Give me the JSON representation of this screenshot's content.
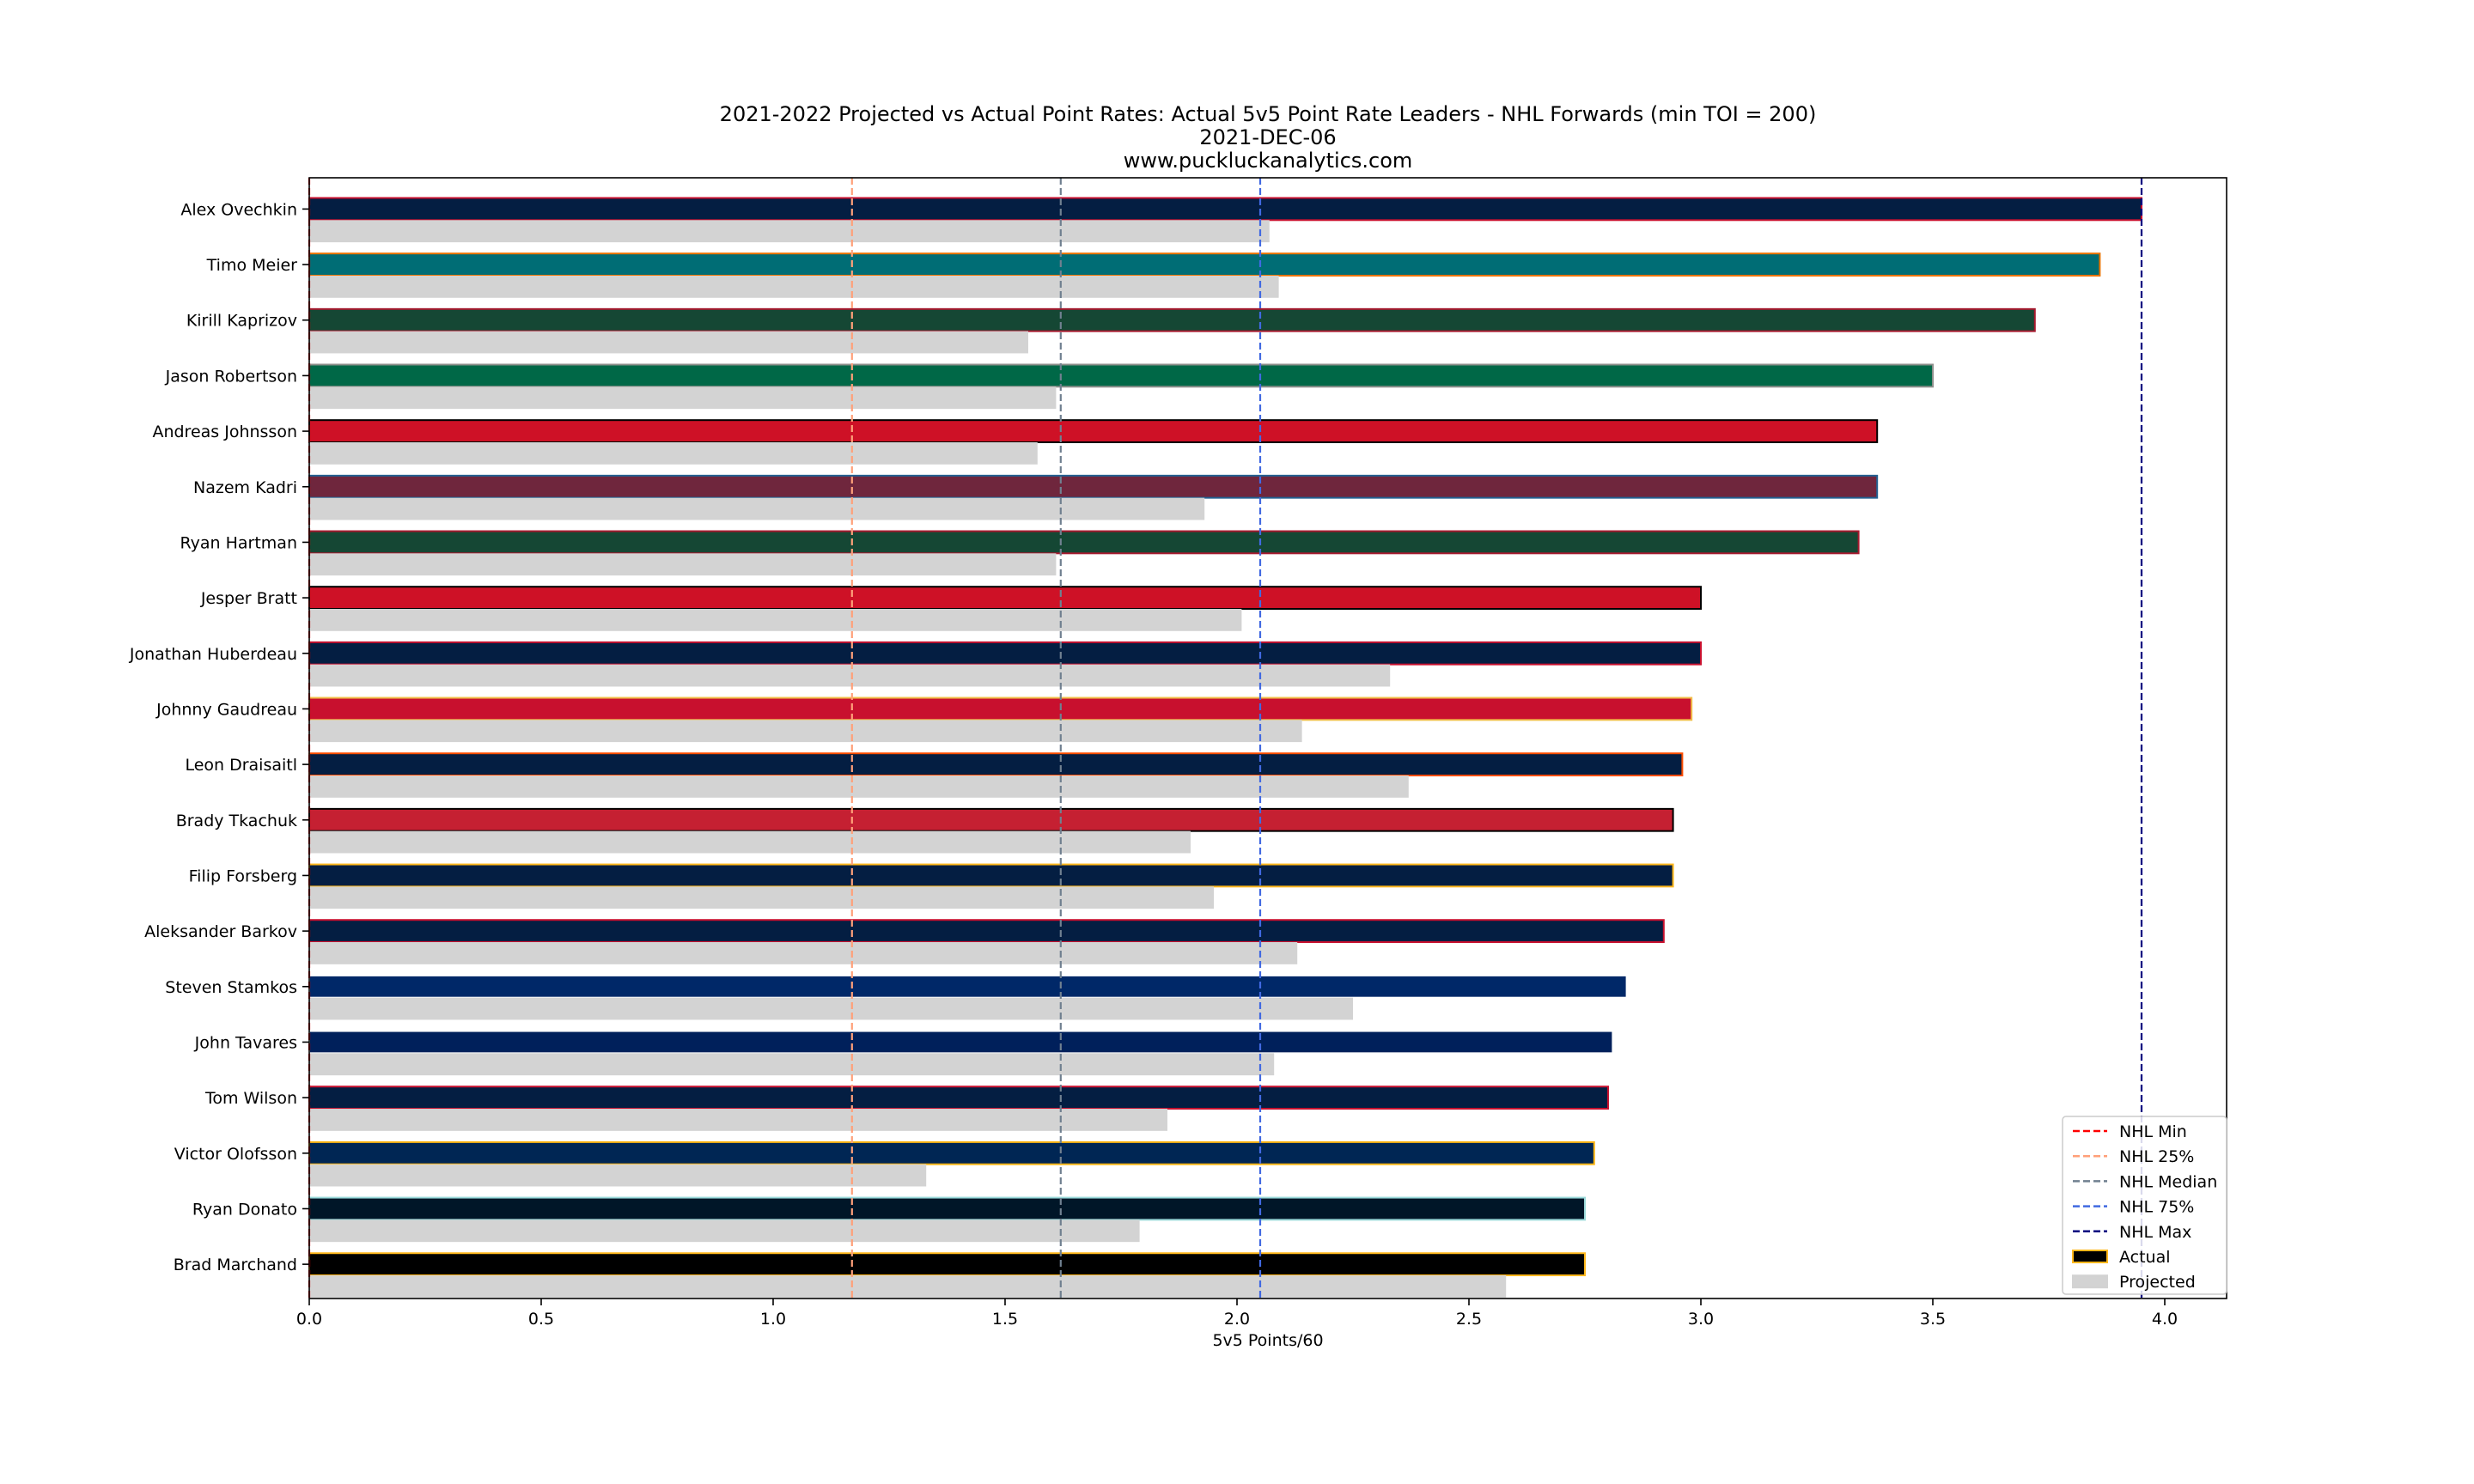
{
  "chart_data": {
    "type": "bar",
    "orientation": "horizontal",
    "title_lines": [
      "2021-2022 Projected vs Actual Point Rates: Actual 5v5 Point Rate Leaders - NHL Forwards (min TOI = 200)",
      "2021-DEC-06",
      "www.puckluckanalytics.com"
    ],
    "xlabel": "5v5 Points/60",
    "ylabel": "",
    "xlim": [
      0.0,
      4.15
    ],
    "xticks": [
      {
        "value": 0.0,
        "label": "0.0"
      },
      {
        "value": 0.5,
        "label": "0.5"
      },
      {
        "value": 1.0,
        "label": "1.0"
      },
      {
        "value": 1.5,
        "label": "1.5"
      },
      {
        "value": 2.0,
        "label": "2.0"
      },
      {
        "value": 2.5,
        "label": "2.5"
      },
      {
        "value": 3.0,
        "label": "3.0"
      },
      {
        "value": 3.5,
        "label": "3.5"
      },
      {
        "value": 4.0,
        "label": "4.0"
      }
    ],
    "grid": false,
    "legend_position": "lower-right",
    "players": [
      {
        "name": "Alex Ovechkin",
        "actual": 3.95,
        "projected": 2.07,
        "fill": "#041E42",
        "edge": "#C8102E"
      },
      {
        "name": "Timo Meier",
        "actual": 3.86,
        "projected": 2.09,
        "fill": "#006D75",
        "edge": "#EA7200"
      },
      {
        "name": "Kirill Kaprizov",
        "actual": 3.72,
        "projected": 1.55,
        "fill": "#154734",
        "edge": "#A6192E"
      },
      {
        "name": "Jason Robertson",
        "actual": 3.5,
        "projected": 1.61,
        "fill": "#006847",
        "edge": "#8F8F8C"
      },
      {
        "name": "Andreas Johnsson",
        "actual": 3.38,
        "projected": 1.57,
        "fill": "#CE1126",
        "edge": "#000000"
      },
      {
        "name": "Nazem Kadri",
        "actual": 3.38,
        "projected": 1.93,
        "fill": "#6F263D",
        "edge": "#236192"
      },
      {
        "name": "Ryan Hartman",
        "actual": 3.34,
        "projected": 1.61,
        "fill": "#154734",
        "edge": "#A6192E"
      },
      {
        "name": "Jesper Bratt",
        "actual": 3.0,
        "projected": 2.01,
        "fill": "#CE1126",
        "edge": "#000000"
      },
      {
        "name": "Jonathan Huberdeau",
        "actual": 3.0,
        "projected": 2.33,
        "fill": "#041E42",
        "edge": "#C8102E"
      },
      {
        "name": "Johnny Gaudreau",
        "actual": 2.98,
        "projected": 2.14,
        "fill": "#C8102E",
        "edge": "#F1BE48"
      },
      {
        "name": "Leon Draisaitl",
        "actual": 2.96,
        "projected": 2.37,
        "fill": "#041E42",
        "edge": "#FF4C00"
      },
      {
        "name": "Brady Tkachuk",
        "actual": 2.94,
        "projected": 1.9,
        "fill": "#C52032",
        "edge": "#000000"
      },
      {
        "name": "Filip Forsberg",
        "actual": 2.94,
        "projected": 1.95,
        "fill": "#041E42",
        "edge": "#FFB81C"
      },
      {
        "name": "Aleksander Barkov",
        "actual": 2.92,
        "projected": 2.13,
        "fill": "#041E42",
        "edge": "#C8102E"
      },
      {
        "name": "Steven Stamkos",
        "actual": 2.84,
        "projected": 2.25,
        "fill": "#002868",
        "edge": "#FFFFFF"
      },
      {
        "name": "John Tavares",
        "actual": 2.81,
        "projected": 2.08,
        "fill": "#00205B",
        "edge": "#FFFFFF"
      },
      {
        "name": "Tom Wilson",
        "actual": 2.8,
        "projected": 1.85,
        "fill": "#041E42",
        "edge": "#C8102E"
      },
      {
        "name": "Victor Olofsson",
        "actual": 2.77,
        "projected": 1.33,
        "fill": "#002654",
        "edge": "#FCB514"
      },
      {
        "name": "Ryan Donato",
        "actual": 2.75,
        "projected": 1.79,
        "fill": "#001628",
        "edge": "#99D9D9"
      },
      {
        "name": "Brad Marchand",
        "actual": 2.75,
        "projected": 2.58,
        "fill": "#000000",
        "edge": "#FFB81C"
      }
    ],
    "projected_color": "#D3D3D3",
    "reference_lines": [
      {
        "name": "NHL Min",
        "value": 0.0,
        "color": "#FF0000"
      },
      {
        "name": "NHL 25%",
        "value": 1.17,
        "color": "#FFA07A"
      },
      {
        "name": "NHL Median",
        "value": 1.62,
        "color": "#708090"
      },
      {
        "name": "NHL 75%",
        "value": 2.05,
        "color": "#4169E1"
      },
      {
        "name": "NHL Max",
        "value": 3.95,
        "color": "#000080"
      }
    ],
    "legend": [
      {
        "label": "NHL Min",
        "kind": "line",
        "color": "#FF0000"
      },
      {
        "label": "NHL 25%",
        "kind": "line",
        "color": "#FFA07A"
      },
      {
        "label": "NHL Median",
        "kind": "line",
        "color": "#708090"
      },
      {
        "label": "NHL 75%",
        "kind": "line",
        "color": "#4169E1"
      },
      {
        "label": "NHL Max",
        "kind": "line",
        "color": "#000080"
      },
      {
        "label": "Actual",
        "kind": "patch",
        "color": "#000000",
        "edge": "#FFB81C"
      },
      {
        "label": "Projected",
        "kind": "patch",
        "color": "#D3D3D3",
        "edge": "#D3D3D3"
      }
    ]
  }
}
